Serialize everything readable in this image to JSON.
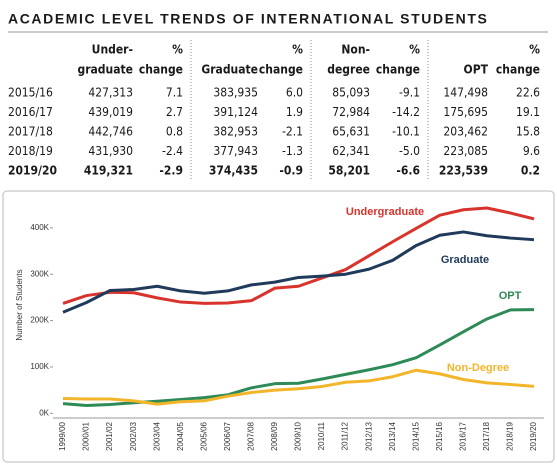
{
  "table": {
    "title": "ACADEMIC LEVEL TRENDS OF INTERNATIONAL STUDENTS",
    "headers": [
      [
        "Under-",
        "graduate"
      ],
      [
        "%",
        "change"
      ],
      [
        "Graduate"
      ],
      [
        "%",
        "change"
      ],
      [
        "Non-",
        "degree"
      ],
      [
        "%",
        "change"
      ],
      [
        "OPT"
      ],
      [
        "%",
        "change"
      ]
    ],
    "rows": [
      [
        "2015/16",
        "427,313",
        "7.1",
        "383,935",
        "6.0",
        "85,093",
        "-9.1",
        "147,498",
        "22.6"
      ],
      [
        "2016/17",
        "439,019",
        "2.7",
        "391,124",
        "1.9",
        "72,984",
        "-14.2",
        "175,695",
        "19.1"
      ],
      [
        "2017/18",
        "442,746",
        "0.8",
        "382,953",
        "-2.1",
        "65,631",
        "-10.1",
        "203,462",
        "15.8"
      ],
      [
        "2018/19",
        "431,930",
        "-2.4",
        "377,943",
        "-1.3",
        "62,341",
        "-5.0",
        "223,085",
        "9.6"
      ],
      [
        "2019/20",
        "419,321",
        "-2.9",
        "374,435",
        "-0.9",
        "58,201",
        "-6.6",
        "223,539",
        "0.2"
      ]
    ]
  },
  "chart_data": {
    "type": "line",
    "y_label": "Number of Students",
    "categories": [
      "1999/00",
      "2000/01",
      "2001/02",
      "2002/03",
      "2003/04",
      "2004/05",
      "2005/06",
      "2006/07",
      "2007/08",
      "2008/09",
      "2009/10",
      "2010/11",
      "2011/12",
      "2012/13",
      "2013/14",
      "2014/15",
      "2015/16",
      "2016/17",
      "2017/18",
      "2018/19",
      "2019/20"
    ],
    "series": [
      {
        "name": "Undergraduate",
        "color": "#d8332c",
        "values": [
          237000,
          254000,
          261000,
          260000,
          249000,
          240000,
          237000,
          238000,
          243000,
          270000,
          274000,
          292000,
          310000,
          340000,
          370000,
          399000,
          427313,
          439019,
          442746,
          431930,
          419321
        ]
      },
      {
        "name": "Graduate",
        "color": "#1f3a5a",
        "values": [
          218000,
          239000,
          265000,
          267000,
          274000,
          264000,
          259000,
          264000,
          277000,
          283000,
          293000,
          296000,
          300000,
          311000,
          330000,
          362000,
          383935,
          391124,
          382953,
          377943,
          374435
        ]
      },
      {
        "name": "OPT",
        "color": "#2e8a56",
        "values": [
          21000,
          17000,
          19000,
          23000,
          26000,
          30000,
          34000,
          40000,
          55000,
          64000,
          65000,
          74000,
          84000,
          94000,
          105000,
          120000,
          147498,
          175695,
          203462,
          223085,
          223539
        ]
      },
      {
        "name": "Non-Degree",
        "color": "#f3b52a",
        "values": [
          32000,
          31000,
          31000,
          27000,
          20000,
          25000,
          27000,
          37000,
          45000,
          50000,
          53000,
          58000,
          67000,
          70000,
          79000,
          93000,
          85093,
          72984,
          65631,
          62341,
          58201
        ]
      }
    ],
    "ylim": [
      -10000,
      460000
    ],
    "yticks": [
      {
        "value": 0,
        "label": "0K"
      },
      {
        "value": 100000,
        "label": "100K"
      },
      {
        "value": 200000,
        "label": "200K"
      },
      {
        "value": 300000,
        "label": "300K"
      },
      {
        "value": 400000,
        "label": "400K"
      }
    ]
  }
}
